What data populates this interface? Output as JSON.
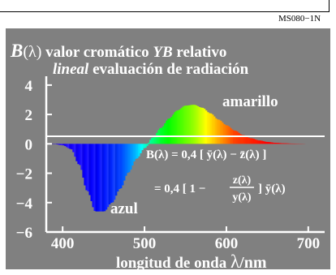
{
  "figure_code": "MS080−1N",
  "chart_data": {
    "type": "area",
    "title_line1": {
      "symbol": "B",
      "paren": "(λ)",
      "text": " valor cromático ",
      "ital": "YB",
      "tail": " relativo"
    },
    "title_line2": {
      "ital": "lineal",
      "text": " evaluación de radiación"
    },
    "xlabel": "longitud de onda ",
    "xlabel_symbol": "λ",
    "xlabel_unit": "/nm",
    "x_ticks": [
      "400",
      "500",
      "600",
      "700"
    ],
    "y_ticks": [
      "4",
      "2",
      "0",
      "−2",
      "−4",
      "−6"
    ],
    "xlim": [
      380,
      720
    ],
    "ylim": [
      -6,
      4.6
    ],
    "annotations": {
      "positive": "amarillo",
      "negative": "azul"
    },
    "formula_line1": "B(λ) = 0,4 [ ȳ(λ) − z̄(λ) ]",
    "formula_line2_prefix": "= 0,4 [ 1 −",
    "formula_numerator": "z(λ)",
    "formula_denominator": "y(λ)",
    "formula_line2_suffix": "] ȳ(λ)",
    "x": [
      390,
      400,
      410,
      420,
      430,
      440,
      450,
      460,
      470,
      480,
      490,
      500,
      510,
      520,
      530,
      540,
      550,
      560,
      570,
      580,
      590,
      600,
      610,
      620,
      630,
      640,
      650,
      660,
      670,
      680,
      690,
      700,
      710,
      720
    ],
    "y": [
      -0.02,
      -0.1,
      -0.35,
      -1.4,
      -3.2,
      -4.6,
      -4.6,
      -4.0,
      -3.05,
      -1.95,
      -1.0,
      -0.28,
      0.42,
      1.08,
      1.72,
      2.27,
      2.6,
      2.66,
      2.46,
      2.08,
      1.65,
      1.26,
      0.9,
      0.6,
      0.38,
      0.23,
      0.13,
      0.07,
      0.04,
      0.02,
      0.01,
      0.0,
      0.0,
      0.0
    ]
  }
}
